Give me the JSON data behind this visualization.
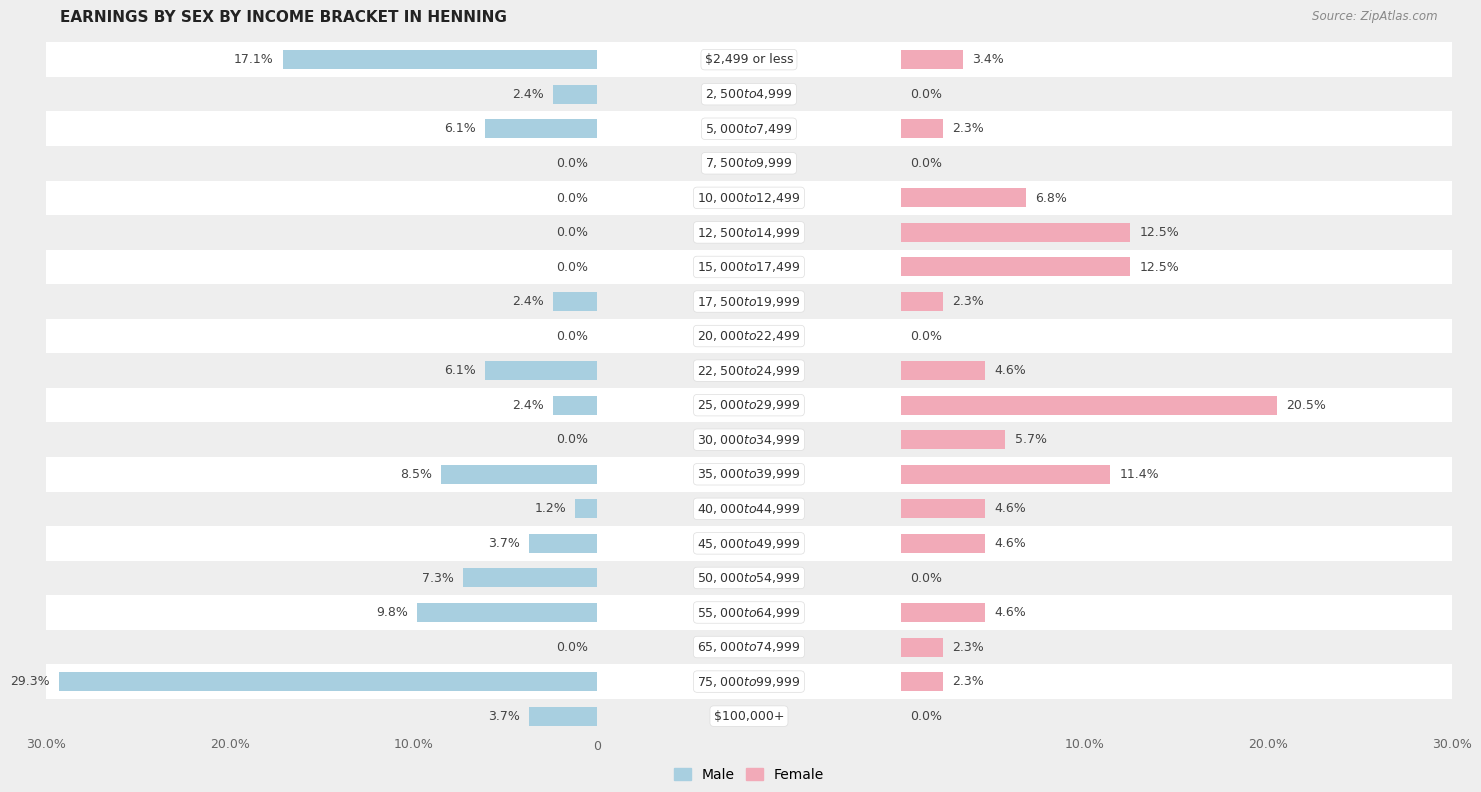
{
  "title": "EARNINGS BY SEX BY INCOME BRACKET IN HENNING",
  "source": "Source: ZipAtlas.com",
  "categories": [
    "$2,499 or less",
    "$2,500 to $4,999",
    "$5,000 to $7,499",
    "$7,500 to $9,999",
    "$10,000 to $12,499",
    "$12,500 to $14,999",
    "$15,000 to $17,499",
    "$17,500 to $19,999",
    "$20,000 to $22,499",
    "$22,500 to $24,999",
    "$25,000 to $29,999",
    "$30,000 to $34,999",
    "$35,000 to $39,999",
    "$40,000 to $44,999",
    "$45,000 to $49,999",
    "$50,000 to $54,999",
    "$55,000 to $64,999",
    "$65,000 to $74,999",
    "$75,000 to $99,999",
    "$100,000+"
  ],
  "male_values": [
    17.1,
    2.4,
    6.1,
    0.0,
    0.0,
    0.0,
    0.0,
    2.4,
    0.0,
    6.1,
    2.4,
    0.0,
    8.5,
    1.2,
    3.7,
    7.3,
    9.8,
    0.0,
    29.3,
    3.7
  ],
  "female_values": [
    3.4,
    0.0,
    2.3,
    0.0,
    6.8,
    12.5,
    12.5,
    2.3,
    0.0,
    4.6,
    20.5,
    5.7,
    11.4,
    4.6,
    4.6,
    0.0,
    4.6,
    2.3,
    2.3,
    0.0
  ],
  "male_color": "#a8cfe0",
  "female_color": "#f2aab8",
  "background_color": "#eeeeee",
  "row_color_even": "#ffffff",
  "row_color_odd": "#eeeeee",
  "axis_max": 30.0,
  "label_fontsize": 9.0,
  "value_fontsize": 9.0,
  "title_fontsize": 11,
  "legend_labels": [
    "Male",
    "Female"
  ],
  "bar_height": 0.55
}
